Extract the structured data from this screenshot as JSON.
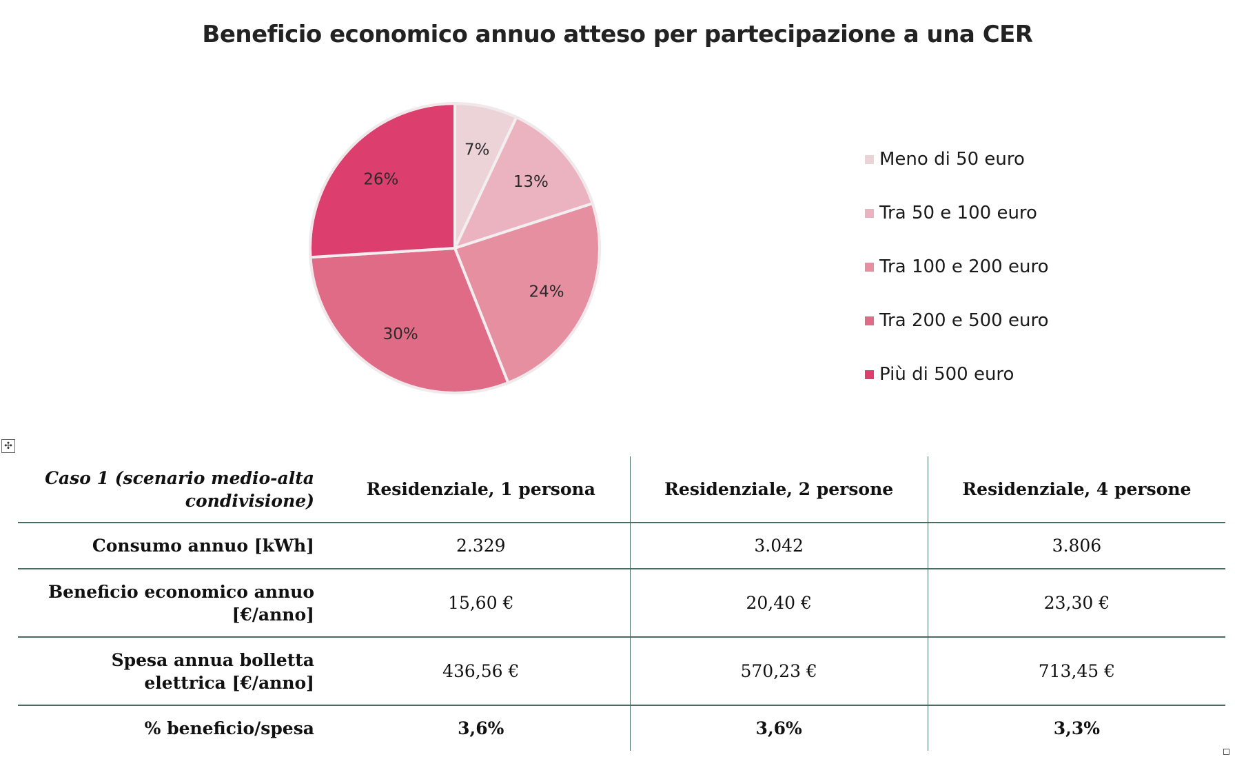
{
  "chart_data": {
    "type": "pie",
    "title": "Beneficio economico annuo atteso per partecipazione a una CER",
    "categories": [
      "Meno di 50 euro",
      "Tra 50 e 100 euro",
      "Tra 100 e 200 euro",
      "Tra 200 e 500 euro",
      "Più di 500 euro"
    ],
    "values": [
      7,
      13,
      24,
      30,
      26
    ],
    "labels": [
      "7%",
      "13%",
      "24%",
      "30%",
      "26%"
    ],
    "colors": [
      "#ecd3d8",
      "#ebb3bf",
      "#e68fa0",
      "#e06b87",
      "#dc3e6e"
    ],
    "legend_position": "right"
  },
  "table": {
    "corner_label": "Caso 1 (scenario medio-alta condivisione)",
    "columns": [
      "Residenziale, 1 persona",
      "Residenziale, 2 persone",
      "Residenziale, 4 persone"
    ],
    "rows": [
      {
        "label": "Consumo annuo [kWh]",
        "values": [
          "2.329",
          "3.042",
          "3.806"
        ]
      },
      {
        "label": "Beneficio economico annuo [€/anno]",
        "values": [
          "15,60 €",
          "20,40 €",
          "23,30 €"
        ]
      },
      {
        "label": "Spesa annua bolletta elettrica [€/anno]",
        "values": [
          "436,56 €",
          "570,23 €",
          "713,45 €"
        ]
      },
      {
        "label": "% beneficio/spesa",
        "values": [
          "3,6%",
          "3,6%",
          "3,3%"
        ]
      }
    ]
  },
  "icons": {
    "move_handle": "move-icon",
    "resize_handle": "resize-handle-icon"
  }
}
